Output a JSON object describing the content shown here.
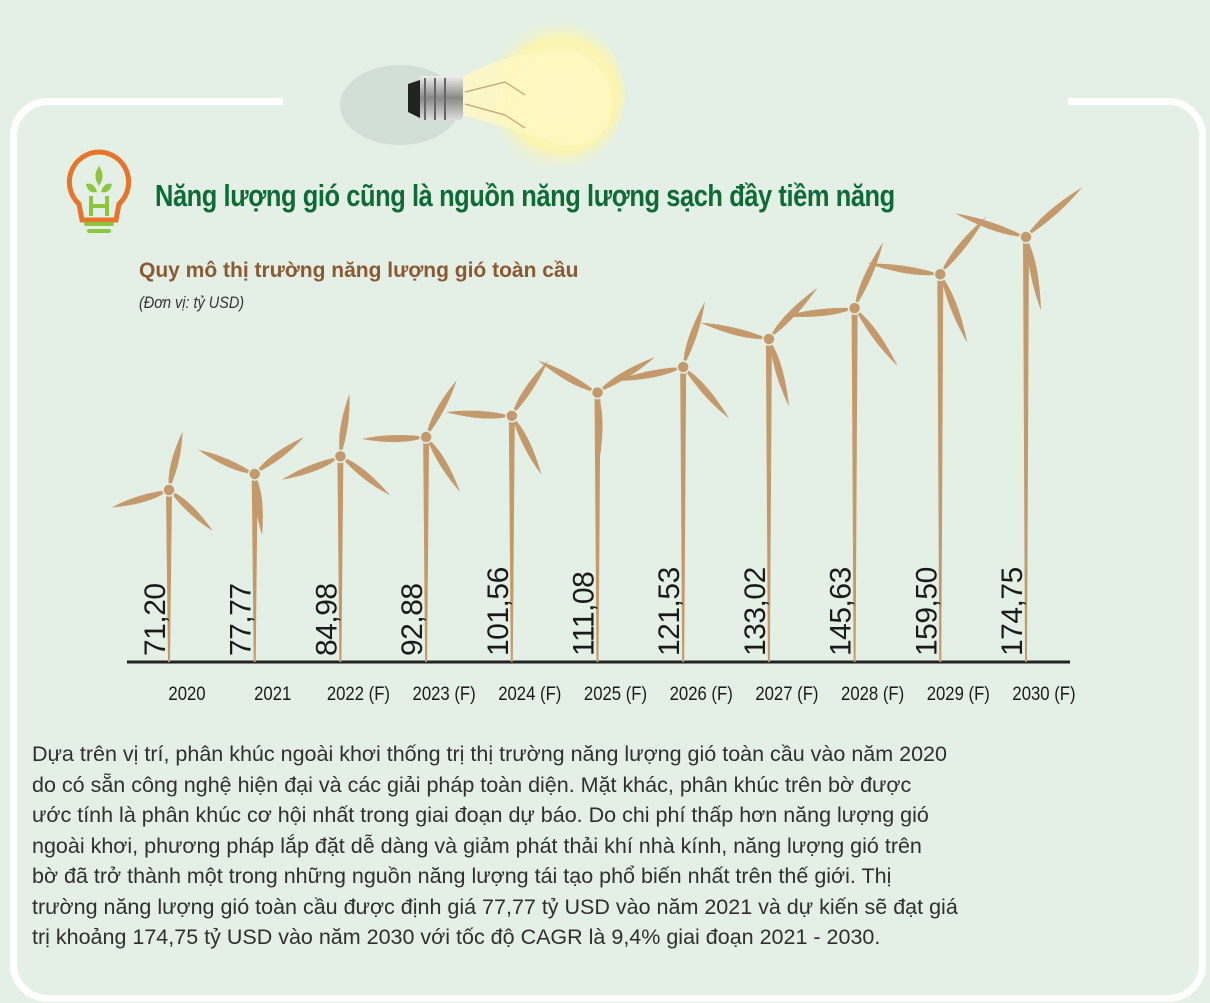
{
  "header": {
    "title": "Năng lượng gió cũng là nguồn năng lượng sạch đầy tiềm năng"
  },
  "chart_data": {
    "type": "bar",
    "title": "Quy mô thị trường năng lượng gió toàn cầu",
    "subtitle": "(Đơn vị: tỷ USD)",
    "xlabel": "",
    "ylabel": "",
    "categories": [
      "2020",
      "2021",
      "2022 (F)",
      "2023 (F)",
      "2024 (F)",
      "2025 (F)",
      "2026 (F)",
      "2027 (F)",
      "2028 (F)",
      "2029 (F)",
      "2030 (F)"
    ],
    "values": [
      71.2,
      77.77,
      84.98,
      92.88,
      101.56,
      111.08,
      121.53,
      133.02,
      145.63,
      159.5,
      174.75
    ],
    "value_labels": [
      "71,20",
      "77,77",
      "84,98",
      "92,88",
      "101,56",
      "111,08",
      "121,53",
      "133,02",
      "145,63",
      "159,50",
      "174,75"
    ],
    "grid": false,
    "colors": {
      "turbine": "#c49a6c",
      "axis": "#222222",
      "title": "#0d6b35",
      "subtitle": "#8b5a32"
    }
  },
  "paragraph": {
    "lines": [
      "Dựa trên vị trí, phân khúc ngoài khơi thống trị thị trường năng lượng gió toàn cầu vào năm 2020",
      "do có sẵn công nghệ hiện đại và các giải pháp toàn diện. Mặt khác, phân khúc trên bờ được",
      "ước tính là phân khúc cơ hội nhất trong giai đoạn dự báo. Do chi phí thấp hơn năng lượng gió",
      "ngoài khơi, phương pháp lắp đặt dễ dàng và giảm phát thải khí nhà kính, năng lượng gió trên",
      "bờ đã trở thành một trong những nguồn năng lượng tái tạo phổ biến nhất trên thế giới. Thị",
      "trường năng lượng gió toàn cầu được định giá 77,77 tỷ USD vào năm 2021 và dự kiến sẽ đạt giá",
      "trị khoảng 174,75 tỷ USD vào năm 2030 với tốc độ CAGR là 9,4% giai đoạn 2021 - 2030."
    ]
  }
}
